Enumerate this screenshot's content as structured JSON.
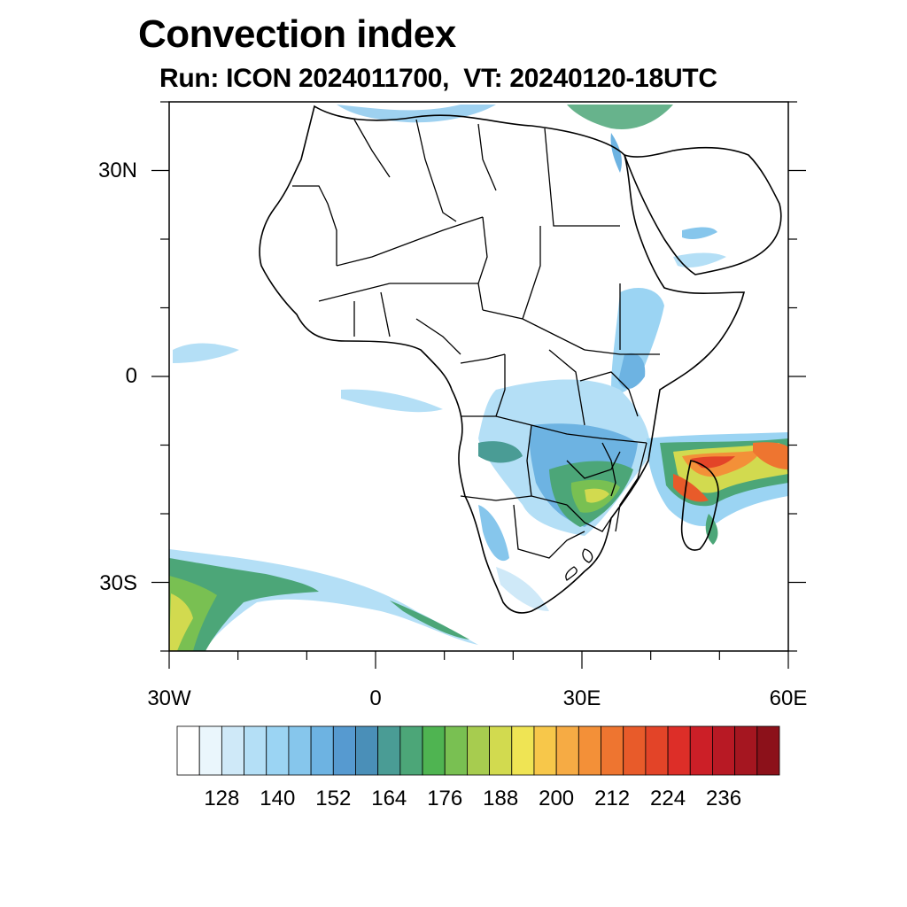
{
  "title": "Convection index",
  "subtitle": "Run: ICON 2024011700,  VT: 20240120-18UTC",
  "axes": {
    "y_labels": [
      "30N",
      "0",
      "30S"
    ],
    "x_labels": [
      "30W",
      "0",
      "30E",
      "60E"
    ],
    "lon_range": [
      -30,
      60
    ],
    "lat_range": [
      -40,
      40
    ]
  },
  "colorbar": {
    "labels": [
      "128",
      "140",
      "152",
      "164",
      "176",
      "188",
      "200",
      "212",
      "224",
      "236"
    ],
    "colors": [
      "#ffffff",
      "#eaf6fc",
      "#cfe9f8",
      "#b4dff6",
      "#9bd4f3",
      "#86c6ec",
      "#6db3e2",
      "#569ad0",
      "#4a8fb8",
      "#4a9c95",
      "#4ca678",
      "#4fb451",
      "#79c052",
      "#a7cc4f",
      "#d2da4f",
      "#efe454",
      "#f7c74a",
      "#f6ab44",
      "#f39038",
      "#ee7530",
      "#e85b2a",
      "#e34428",
      "#dd2e28",
      "#cc1f27",
      "#b81924",
      "#a51620",
      "#8c111a"
    ]
  },
  "map_features": {
    "coastline": "africa-arabia-madagascar",
    "convection_areas": [
      "east-africa",
      "southern-africa",
      "mozambique-channel-madagascar",
      "south-atlantic-southwest",
      "equatorial-atlantic",
      "mediterranean",
      "arabian-peninsula-south"
    ]
  }
}
